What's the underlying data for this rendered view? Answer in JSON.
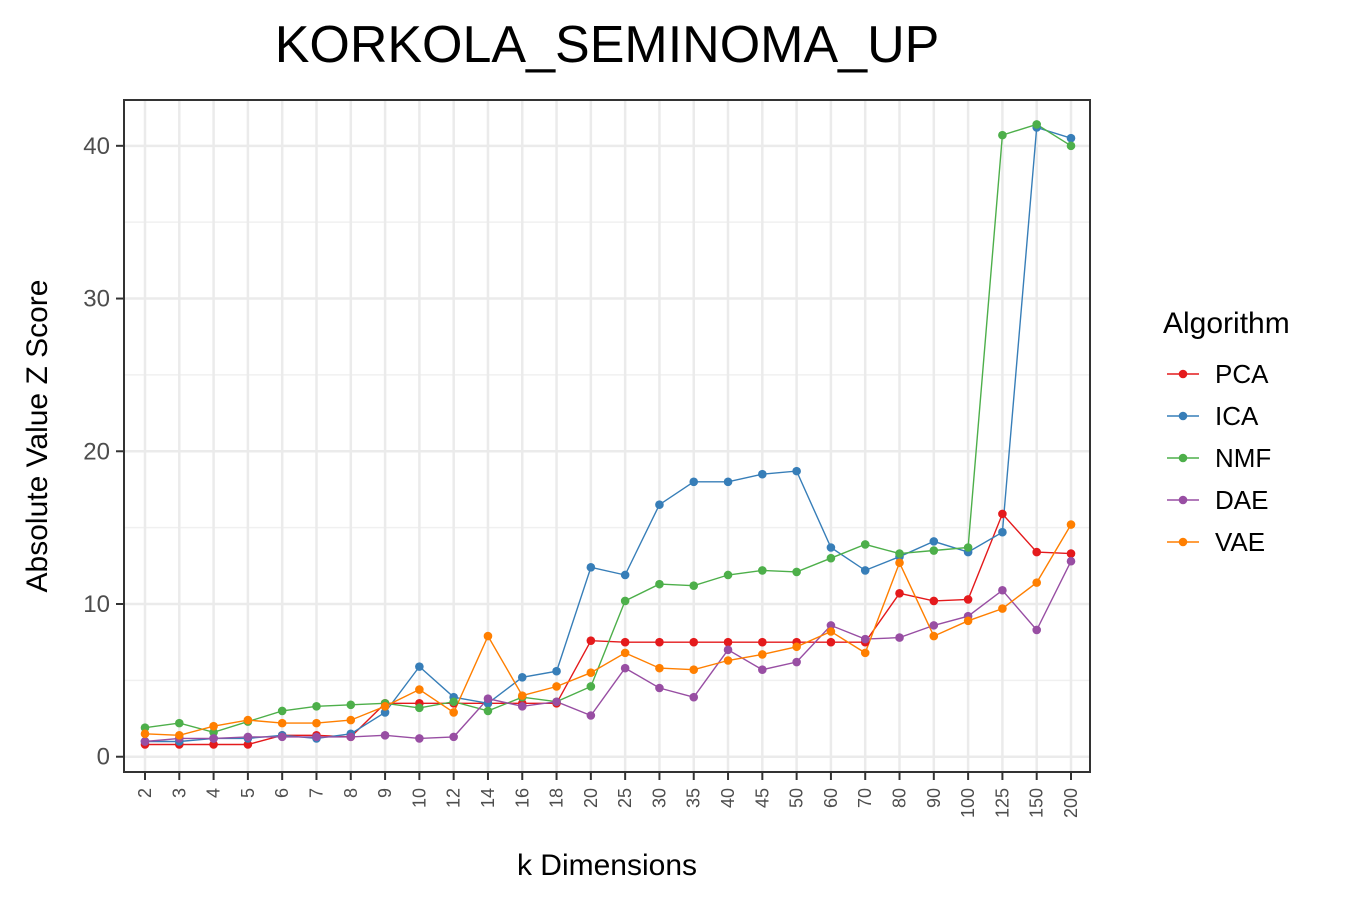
{
  "chart_data": {
    "type": "line",
    "title": "KORKOLA_SEMINOMA_UP",
    "xlabel": "k Dimensions",
    "ylabel": "Absolute Value Z Score",
    "ylim": [
      -1,
      43
    ],
    "yticks": [
      0,
      10,
      20,
      30,
      40
    ],
    "grid": true,
    "legend_title": "Algorithm",
    "legend_position": "right",
    "categories": [
      "2",
      "3",
      "4",
      "5",
      "6",
      "7",
      "8",
      "9",
      "10",
      "12",
      "14",
      "16",
      "18",
      "20",
      "25",
      "30",
      "35",
      "40",
      "45",
      "50",
      "60",
      "70",
      "80",
      "90",
      "100",
      "125",
      "150",
      "200"
    ],
    "series": [
      {
        "name": "PCA",
        "color": "#E41A1C",
        "values": [
          0.8,
          0.8,
          0.8,
          0.8,
          1.4,
          1.4,
          1.3,
          3.5,
          3.5,
          3.5,
          3.5,
          3.5,
          3.5,
          7.6,
          7.5,
          7.5,
          7.5,
          7.5,
          7.5,
          7.5,
          7.5,
          7.5,
          10.7,
          10.2,
          10.3,
          15.9,
          13.4,
          13.3
        ]
      },
      {
        "name": "ICA",
        "color": "#377EB8",
        "values": [
          1.0,
          1.0,
          1.2,
          1.2,
          1.4,
          1.2,
          1.5,
          2.9,
          5.9,
          3.9,
          3.5,
          5.2,
          5.6,
          12.4,
          11.9,
          16.5,
          18.0,
          18.0,
          18.5,
          18.7,
          13.7,
          12.2,
          13.1,
          14.1,
          13.4,
          14.7,
          41.2,
          40.5
        ]
      },
      {
        "name": "NMF",
        "color": "#4DAF4A",
        "values": [
          1.9,
          2.2,
          1.6,
          2.3,
          3.0,
          3.3,
          3.4,
          3.5,
          3.2,
          3.6,
          3.0,
          3.9,
          3.6,
          4.6,
          10.2,
          11.3,
          11.2,
          11.9,
          12.2,
          12.1,
          13.0,
          13.9,
          13.3,
          13.5,
          13.7,
          40.7,
          41.4,
          40.0
        ]
      },
      {
        "name": "DAE",
        "color": "#984EA3",
        "values": [
          1.0,
          1.2,
          1.2,
          1.3,
          1.3,
          1.3,
          1.3,
          1.4,
          1.2,
          1.3,
          3.8,
          3.3,
          3.6,
          2.7,
          5.8,
          4.5,
          3.9,
          7.0,
          5.7,
          6.2,
          8.6,
          7.7,
          7.8,
          8.6,
          9.2,
          10.9,
          8.3,
          12.8
        ]
      },
      {
        "name": "VAE",
        "color": "#FF7F00",
        "values": [
          1.5,
          1.4,
          2.0,
          2.4,
          2.2,
          2.2,
          2.4,
          3.3,
          4.4,
          2.9,
          7.9,
          4.0,
          4.6,
          5.5,
          6.8,
          5.8,
          5.7,
          6.3,
          6.7,
          7.2,
          8.2,
          6.8,
          12.7,
          7.9,
          8.9,
          9.7,
          11.4,
          15.2
        ]
      }
    ]
  }
}
